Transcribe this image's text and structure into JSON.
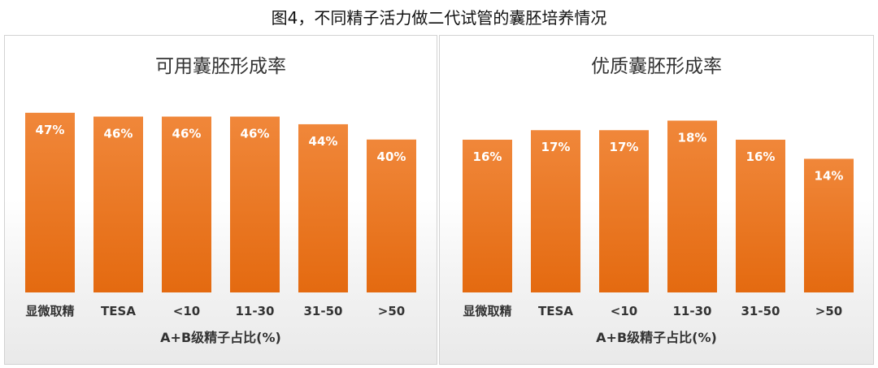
{
  "figure_title": "图4，不同精子活力做二代试管的囊胚培养情况",
  "bar_color_top": "#F0873A",
  "bar_color_bottom": "#E46A10",
  "chart_data": [
    {
      "type": "bar",
      "title": "可用囊胚形成率",
      "xlabel": "A+B级精子占比(%)",
      "ylabel": "",
      "categories": [
        "显微取精",
        "TESA",
        "<10",
        "11-30",
        "31-50",
        ">50"
      ],
      "values": [
        47,
        46,
        46,
        46,
        44,
        40
      ],
      "data_labels": [
        "47%",
        "46%",
        "46%",
        "46%",
        "44%",
        "40%"
      ],
      "unit": "%",
      "ylim": [
        0,
        47.6
      ],
      "grid": false,
      "legend": "none"
    },
    {
      "type": "bar",
      "title": "优质囊胚形成率",
      "xlabel": "A+B级精子占比(%)",
      "ylabel": "",
      "categories": [
        "显微取精",
        "TESA",
        "<10",
        "11-30",
        "31-50",
        ">50"
      ],
      "values": [
        16,
        17,
        17,
        18,
        16,
        14
      ],
      "data_labels": [
        "16%",
        "17%",
        "17%",
        "18%",
        "16%",
        "14%"
      ],
      "unit": "%",
      "ylim": [
        0,
        17.7
      ],
      "grid": false,
      "legend": "none"
    }
  ]
}
